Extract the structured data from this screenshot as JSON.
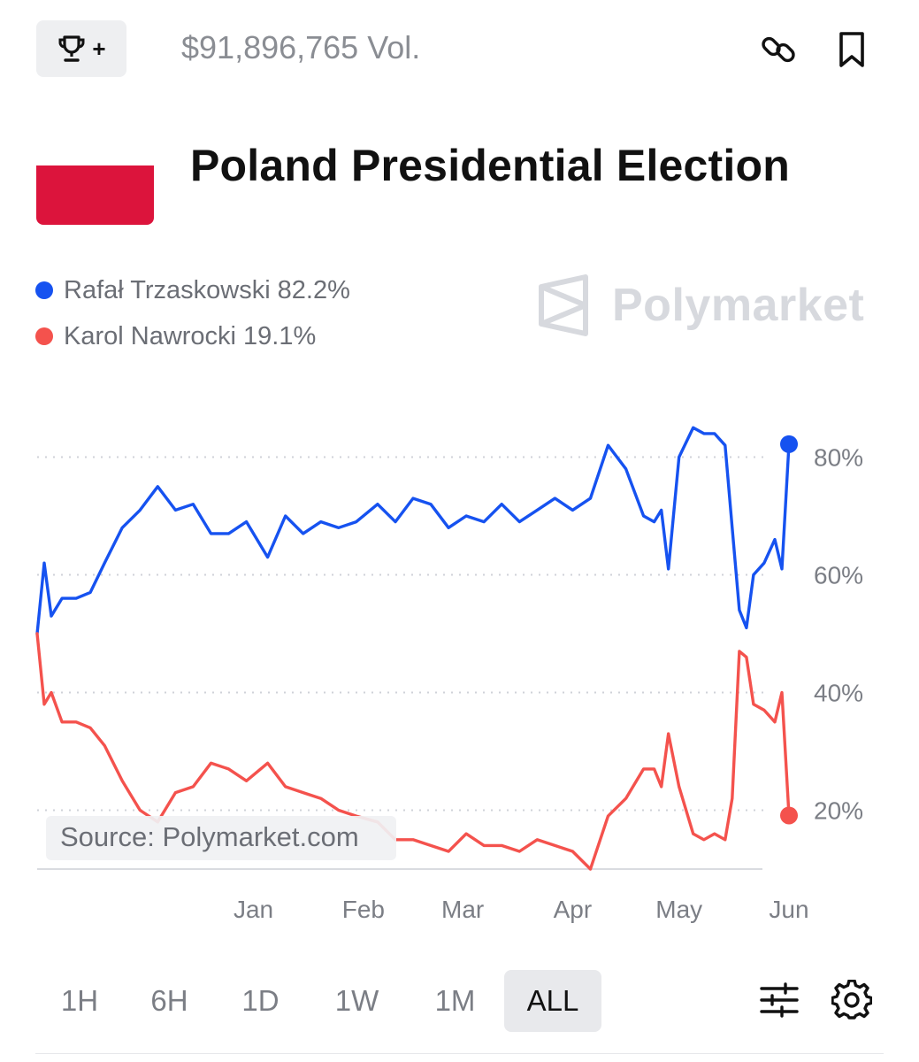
{
  "header": {
    "trophy_plus": "+",
    "volume": "$91,896,765 Vol."
  },
  "market": {
    "title": "Poland Presidential Election"
  },
  "legend": [
    {
      "name": "Rafał Trzaskowski",
      "value": "82.2%",
      "color": "#1652f0"
    },
    {
      "name": "Karol Nawrocki",
      "value": "19.1%",
      "color": "#f4524d"
    }
  ],
  "watermark": "Polymarket",
  "source": "Source: Polymarket.com",
  "range_options": [
    "1H",
    "6H",
    "1D",
    "1W",
    "1M",
    "ALL"
  ],
  "range_selected": "ALL",
  "icons": {
    "trophy": "trophy-icon",
    "link": "link-icon",
    "bookmark": "bookmark-icon",
    "filter": "sliders-icon",
    "settings": "gear-icon"
  },
  "chart_data": {
    "type": "line",
    "x_ticks": [
      "Jan",
      "Feb",
      "Mar",
      "Apr",
      "May",
      "Jun"
    ],
    "y_ticks": [
      "20%",
      "40%",
      "60%",
      "80%"
    ],
    "y_tick_values": [
      20,
      40,
      60,
      80
    ],
    "ylim": [
      10,
      90
    ],
    "grid": true,
    "legend_position": "top-left",
    "x_dates": [
      "2024-11-01",
      "2024-11-03",
      "2024-11-05",
      "2024-11-08",
      "2024-11-12",
      "2024-11-16",
      "2024-11-20",
      "2024-11-25",
      "2024-11-30",
      "2024-12-05",
      "2024-12-10",
      "2024-12-15",
      "2024-12-20",
      "2024-12-25",
      "2024-12-30",
      "2025-01-05",
      "2025-01-10",
      "2025-01-15",
      "2025-01-20",
      "2025-01-25",
      "2025-01-30",
      "2025-02-05",
      "2025-02-10",
      "2025-02-15",
      "2025-02-20",
      "2025-02-25",
      "2025-03-02",
      "2025-03-07",
      "2025-03-12",
      "2025-03-17",
      "2025-03-22",
      "2025-03-27",
      "2025-04-01",
      "2025-04-06",
      "2025-04-11",
      "2025-04-16",
      "2025-04-21",
      "2025-04-24",
      "2025-04-26",
      "2025-04-28",
      "2025-05-01",
      "2025-05-05",
      "2025-05-08",
      "2025-05-11",
      "2025-05-14",
      "2025-05-16",
      "2025-05-18",
      "2025-05-20",
      "2025-05-22",
      "2025-05-25",
      "2025-05-28",
      "2025-05-30",
      "2025-06-01"
    ],
    "series": [
      {
        "name": "Rafał Trzaskowski",
        "color": "#1652f0",
        "end_label": "82.2%",
        "values": [
          50,
          62,
          53,
          56,
          56,
          57,
          62,
          68,
          71,
          75,
          71,
          72,
          67,
          67,
          69,
          63,
          70,
          67,
          69,
          68,
          69,
          72,
          69,
          73,
          72,
          68,
          70,
          69,
          72,
          69,
          71,
          73,
          71,
          73,
          82,
          78,
          70,
          69,
          71,
          61,
          80,
          85,
          84,
          84,
          82,
          68,
          54,
          51,
          60,
          62,
          66,
          61,
          82.2
        ]
      },
      {
        "name": "Karol Nawrocki",
        "color": "#f4524d",
        "end_label": "19.1%",
        "values": [
          50,
          38,
          40,
          35,
          35,
          34,
          31,
          25,
          20,
          18,
          23,
          24,
          28,
          27,
          25,
          28,
          24,
          23,
          22,
          20,
          19,
          18,
          15,
          15,
          14,
          13,
          16,
          14,
          14,
          13,
          15,
          14,
          13,
          10,
          19,
          22,
          27,
          27,
          24,
          33,
          24,
          16,
          15,
          16,
          15,
          22,
          47,
          46,
          38,
          37,
          35,
          40,
          19.1
        ]
      }
    ]
  }
}
